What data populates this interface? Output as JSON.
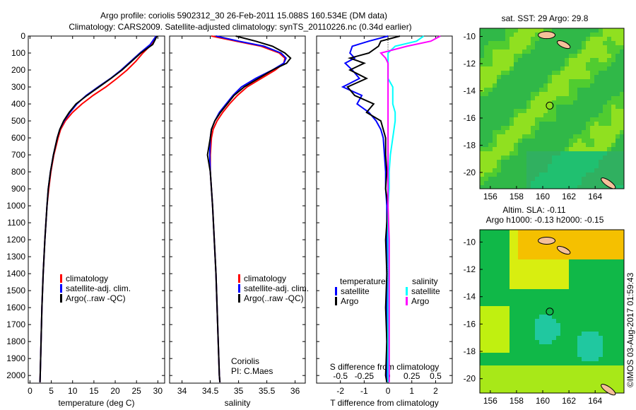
{
  "title": {
    "line1": "Argo profile: coriolis 5902312_30 26-Feb-2011 15.088S 160.534E (DM data)",
    "line2": "Climatology: CARS2009. Satellite-adjusted climatology: synTS_20110226.nc (0.34d earlier)"
  },
  "credit": "©IMOS 03-Aug-2017 01:59:43",
  "colors": {
    "climatology": "#ff0000",
    "satellite": "#0000ff",
    "argo": "#000000",
    "s_satellite": "#00ffff",
    "s_argo": "#ff00ff"
  },
  "chart_data": [
    {
      "type": "line",
      "id": "temperature",
      "xlabel": "temperature (deg C)",
      "xlim": [
        -0.4,
        31.6
      ],
      "ylim": [
        0,
        2045
      ],
      "yticks": [
        0,
        100,
        200,
        300,
        400,
        500,
        600,
        700,
        800,
        900,
        1000,
        1100,
        1200,
        1300,
        1400,
        1500,
        1600,
        1700,
        1800,
        1900,
        2000
      ],
      "xticks": [
        0,
        5,
        10,
        15,
        20,
        25,
        30
      ],
      "depth": [
        0,
        50,
        100,
        150,
        200,
        250,
        300,
        350,
        400,
        450,
        500,
        550,
        600,
        700,
        800,
        900,
        1000,
        1200,
        1400,
        1600,
        1800,
        2000,
        2040
      ],
      "series": [
        {
          "name": "climatology",
          "color": "#ff0000",
          "values": [
            29.6,
            28.5,
            26.5,
            24.8,
            22.8,
            20.4,
            17.8,
            14.8,
            12.2,
            10.0,
            8.3,
            7.2,
            6.6,
            5.6,
            4.9,
            4.4,
            4.0,
            3.5,
            3.1,
            2.8,
            2.6,
            2.4,
            2.35
          ]
        },
        {
          "name": "satellite-adj. clim.",
          "color": "#0000ff",
          "values": [
            29.6,
            28.2,
            25.8,
            23.6,
            21.4,
            18.9,
            16.0,
            13.2,
            11.0,
            9.4,
            8.0,
            7.0,
            6.4,
            5.5,
            4.8,
            4.3,
            4.0,
            3.5,
            3.1,
            2.8,
            2.6,
            2.4,
            2.35
          ]
        },
        {
          "name": "Argo(..raw -QC)",
          "color": "#000000",
          "values": [
            29.8,
            28.8,
            26.0,
            23.8,
            21.6,
            19.0,
            16.2,
            13.4,
            10.8,
            9.2,
            7.9,
            7.0,
            6.4,
            5.5,
            4.8,
            4.3,
            4.0,
            3.5,
            3.1,
            2.8,
            2.6,
            2.4,
            2.35
          ]
        }
      ]
    },
    {
      "type": "line",
      "id": "salinity",
      "xlabel": "salinity",
      "xlim": [
        33.78,
        36.18
      ],
      "ylim": [
        0,
        2045
      ],
      "xticks": [
        34,
        34.5,
        35,
        35.5,
        36
      ],
      "depth": [
        0,
        30,
        60,
        100,
        130,
        160,
        200,
        250,
        300,
        350,
        400,
        450,
        500,
        550,
        600,
        700,
        800,
        900,
        1000,
        1200,
        1400,
        1600,
        1800,
        2000,
        2040
      ],
      "series": [
        {
          "name": "climatology",
          "color": "#ff0000",
          "values": [
            34.52,
            34.95,
            35.4,
            35.72,
            35.82,
            35.8,
            35.65,
            35.4,
            35.15,
            34.98,
            34.84,
            34.72,
            34.62,
            34.55,
            34.52,
            34.5,
            34.5,
            34.52,
            34.54,
            34.57,
            34.6,
            34.62,
            34.64,
            34.66,
            34.67
          ]
        },
        {
          "name": "satellite-adj. clim.",
          "color": "#0000ff",
          "values": [
            34.6,
            35.0,
            35.45,
            35.75,
            35.84,
            35.8,
            35.6,
            35.3,
            35.05,
            34.9,
            34.78,
            34.66,
            34.58,
            34.52,
            34.5,
            34.49,
            34.5,
            34.52,
            34.54,
            34.57,
            34.6,
            34.62,
            34.64,
            34.66,
            34.67
          ]
        },
        {
          "name": "Argo(..raw -QC)",
          "color": "#000000",
          "values": [
            34.95,
            35.3,
            35.6,
            35.82,
            35.92,
            35.85,
            35.6,
            35.35,
            35.1,
            34.92,
            34.8,
            34.68,
            34.58,
            34.52,
            34.5,
            34.45,
            34.5,
            34.52,
            34.54,
            34.57,
            34.6,
            34.62,
            34.64,
            34.66,
            34.67
          ]
        }
      ],
      "annotation": [
        "Coriolis",
        "PI: C.Maes"
      ]
    },
    {
      "type": "line",
      "id": "difference",
      "xlabel": "T difference from climatology",
      "x2label": "S difference from climatology",
      "xlim": [
        -3.0,
        2.7
      ],
      "ylim": [
        0,
        2045
      ],
      "xticks": [
        -2,
        -1,
        0,
        1,
        2
      ],
      "x2ticks": [
        "-0.5",
        "-0.25",
        "0",
        "0.25",
        "0.5"
      ],
      "depth": [
        0,
        30,
        60,
        100,
        130,
        160,
        200,
        250,
        300,
        350,
        400,
        450,
        500,
        550,
        600,
        700,
        800,
        900,
        1000,
        1200,
        1400,
        1600,
        1800,
        2000,
        2040
      ],
      "series": [
        {
          "name": "temperature satellite",
          "color": "#0000ff",
          "values": [
            0,
            -0.8,
            -1.5,
            -1.6,
            -1.4,
            -1.8,
            -1.5,
            -1.2,
            -1.9,
            -1.1,
            -1.3,
            -0.8,
            -0.5,
            -0.3,
            -0.2,
            -0.15,
            -0.1,
            -0.1,
            -0.05,
            -0.05,
            -0.05,
            -0.05,
            -0.05,
            -0.05,
            -0.05
          ]
        },
        {
          "name": "temperature Argo",
          "color": "#000000",
          "values": [
            0.5,
            -0.3,
            -0.4,
            -0.8,
            -1.6,
            -1.0,
            -1.6,
            -0.9,
            -1.7,
            -1.4,
            -0.6,
            -0.9,
            -0.3,
            -0.2,
            -0.1,
            -0.1,
            -0.05,
            -0.1,
            0,
            -0.1,
            -0.05,
            -0.1,
            -0.05,
            -0.1,
            -0.05
          ]
        },
        {
          "name": "salinity satellite",
          "color": "#00ffff",
          "values": [
            1.5,
            1.2,
            0.3,
            0,
            0,
            0,
            0,
            0,
            0.2,
            0.2,
            0.2,
            0.3,
            0.3,
            0.25,
            0.2,
            0.1,
            0.05,
            0.05,
            0,
            0,
            0.02,
            0,
            0,
            0,
            0
          ]
        },
        {
          "name": "salinity Argo",
          "color": "#ff00ff",
          "values": [
            2.2,
            1.8,
            0.8,
            -0.3,
            -0.1,
            0,
            0,
            0,
            0,
            0,
            0,
            0,
            0,
            0,
            0,
            0,
            0,
            0,
            0,
            0.05,
            0.05,
            0.05,
            0.05,
            0.05,
            0.05
          ]
        }
      ],
      "legend": {
        "t_head": "temperature",
        "s_head": "salinity",
        "satellite": "satellite",
        "argo": "Argo"
      }
    },
    {
      "type": "heatmap",
      "id": "sst_map",
      "title": "sat. SST: 29 Argo: 29.8",
      "xlim": [
        155.2,
        166.2
      ],
      "ylim": [
        -21.2,
        -9.4
      ],
      "xticks": [
        156,
        158,
        160,
        162,
        164
      ],
      "yticks": [
        -10,
        -12,
        -14,
        -16,
        -18,
        -20
      ],
      "marker": [
        160.534,
        -15.088
      ]
    },
    {
      "type": "heatmap",
      "id": "sla_map",
      "title": "Altim. SLA: -0.11",
      "subtitle": "Argo h1000: -0.13 h2000: -0.15",
      "xlim": [
        155.2,
        166.2
      ],
      "ylim": [
        -21.05,
        -9.1
      ],
      "xticks": [
        156,
        158,
        160,
        162,
        164
      ],
      "yticks": [
        -10,
        -12,
        -14,
        -16,
        -18,
        -20
      ],
      "marker": [
        160.534,
        -15.088
      ]
    }
  ]
}
